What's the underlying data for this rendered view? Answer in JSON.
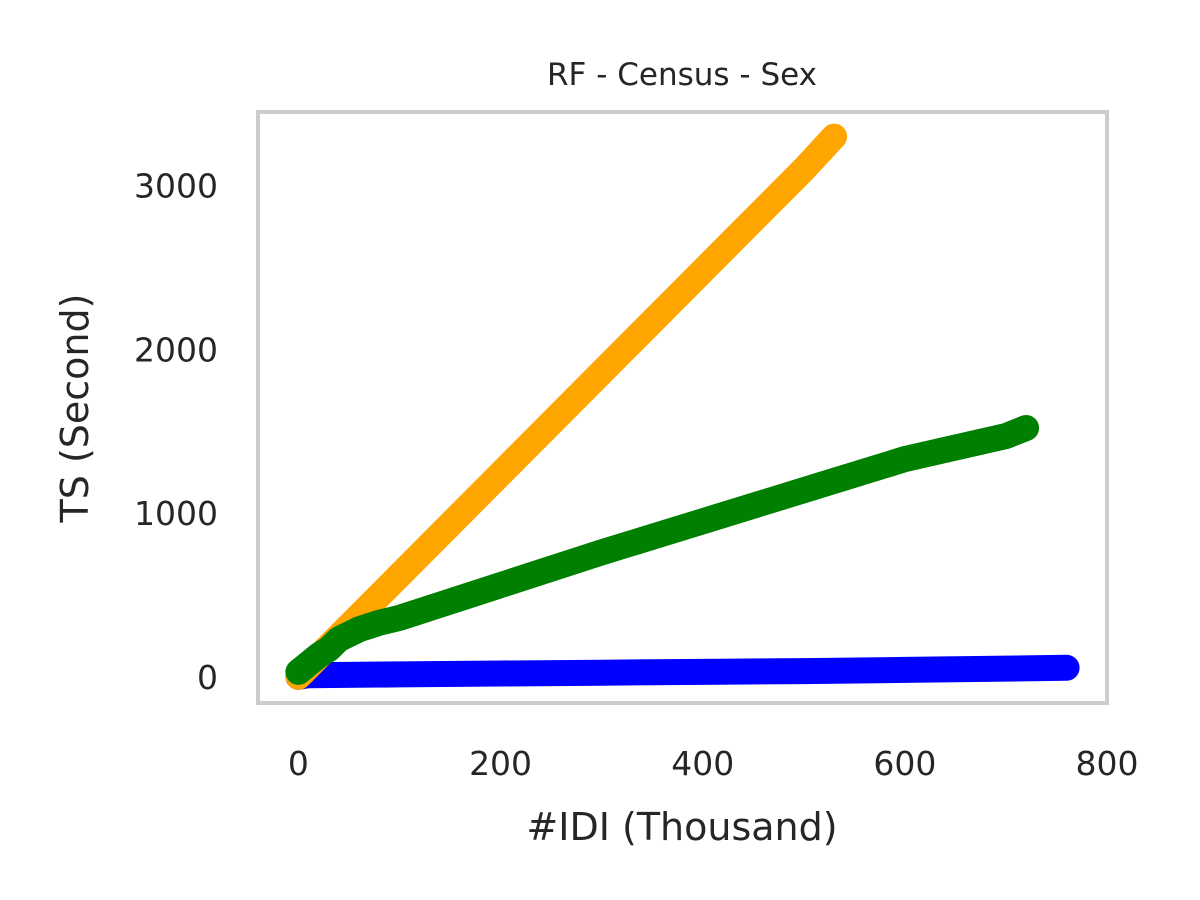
{
  "chart_data": {
    "type": "line",
    "title": "RF - Census - Sex",
    "xlabel": "#IDI (Thousand)",
    "ylabel": "TS (Second)",
    "xlim": [
      -40,
      800
    ],
    "ylim": [
      -160,
      3450
    ],
    "xticks": [
      0,
      200,
      400,
      600,
      800
    ],
    "yticks": [
      0,
      1000,
      2000,
      3000
    ],
    "grid": false,
    "legend": "none",
    "series": [
      {
        "color": "#0000ff",
        "x": [
          0,
          10,
          100,
          200,
          300,
          400,
          500,
          600,
          700,
          760
        ],
        "y": [
          0,
          10,
          15,
          20,
          25,
          30,
          35,
          42,
          50,
          55
        ]
      },
      {
        "color": "#ffa500",
        "x": [
          0,
          100,
          200,
          300,
          400,
          500,
          530
        ],
        "y": [
          0,
          620,
          1240,
          1860,
          2480,
          3100,
          3300
        ]
      },
      {
        "color": "#008000",
        "x": [
          0,
          10,
          20,
          30,
          40,
          60,
          80,
          100,
          200,
          300,
          400,
          500,
          600,
          700,
          720
        ],
        "y": [
          30,
          80,
          130,
          170,
          230,
          290,
          330,
          360,
          560,
          760,
          950,
          1140,
          1330,
          1470,
          1520
        ]
      }
    ]
  }
}
